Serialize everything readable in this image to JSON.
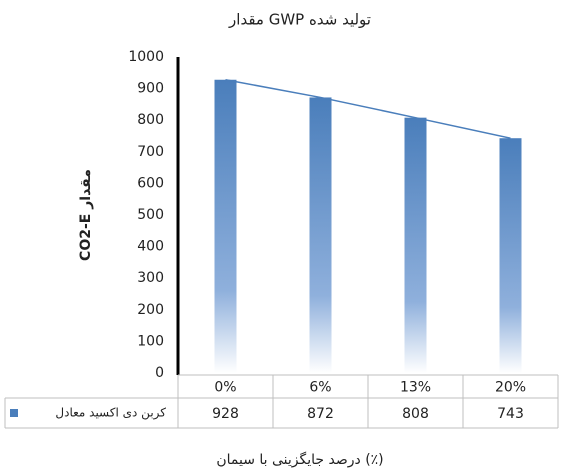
{
  "chart_data": {
    "type": "bar",
    "title": "مقدار GWP تولید شده",
    "y_label": "CO2-E مقدار",
    "x_label": "درصد جایگزینی با سیمان (٪)",
    "categories": [
      "0%",
      "6%",
      "13%",
      "20%"
    ],
    "series": [
      {
        "name": "کربن دی اکسید معادل",
        "color": "#4a7ebb",
        "values": [
          928,
          872,
          808,
          743
        ]
      }
    ],
    "ylim": [
      0,
      1000
    ],
    "yticks": [
      0,
      100,
      200,
      300,
      400,
      500,
      600,
      700,
      800,
      900,
      1000
    ],
    "grid": false,
    "trendline": true,
    "data_table": true
  }
}
